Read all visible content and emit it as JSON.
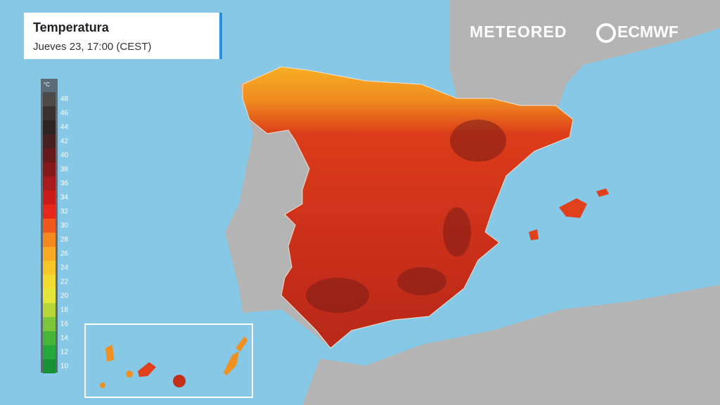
{
  "header": {
    "title": "Temperatura",
    "subtitle": "Jueves 23, 17:00 (CEST)"
  },
  "legend": {
    "unit": "°C",
    "ticks": [
      48,
      46,
      44,
      42,
      40,
      38,
      36,
      34,
      32,
      30,
      28,
      26,
      24,
      22,
      20,
      18,
      16,
      14,
      12,
      10
    ],
    "colors": [
      "#4d4a4a",
      "#3a3030",
      "#2e2222",
      "#472020",
      "#661a1a",
      "#861a1a",
      "#ab1a1a",
      "#cc1c1a",
      "#e6281a",
      "#ef5a1c",
      "#f5881e",
      "#f8aa22",
      "#f5c626",
      "#f0dc30",
      "#e6e63a",
      "#b8d63a",
      "#7cc63a",
      "#46b63a",
      "#24a83a",
      "#169232"
    ]
  },
  "logos": [
    "METEORED",
    "ECMWF"
  ]
}
